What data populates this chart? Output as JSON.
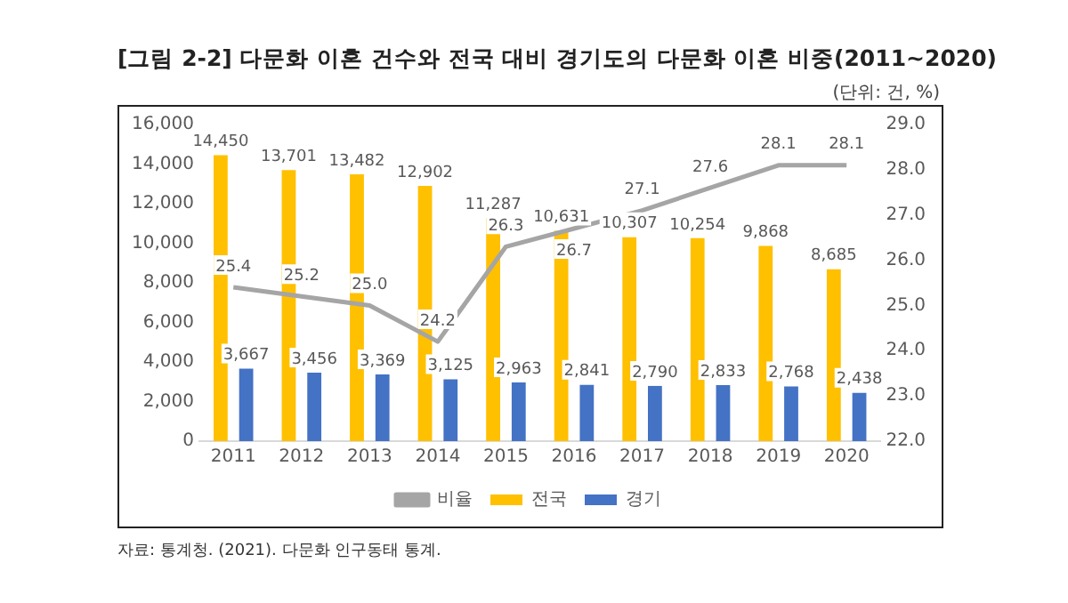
{
  "chart_data": {
    "type": "bar",
    "title": "[그림 2-2] 다문화 이혼 건수와 전국 대비 경기도의 다문화 이혼 비중(2011~2020)",
    "subtitle": "(단위: 건, %)",
    "annotations": [
      "자료: 통계청. (2021). 다문화 인구동태 통계."
    ],
    "categories": [
      "2011",
      "2012",
      "2013",
      "2014",
      "2015",
      "2016",
      "2017",
      "2018",
      "2019",
      "2020"
    ],
    "series": [
      {
        "name": "전국",
        "color": "#ffc000",
        "values": [
          14450,
          13701,
          13482,
          12902,
          11287,
          10631,
          10307,
          10254,
          9868,
          8685
        ],
        "value_labels": [
          "14,450",
          "13,701",
          "13,482",
          "12,902",
          "11,287",
          "10,631",
          "10,307",
          "10,254",
          "9,868",
          "8,685"
        ]
      },
      {
        "name": "경기",
        "color": "#4472c4",
        "values": [
          3667,
          3456,
          3369,
          3125,
          2963,
          2841,
          2790,
          2833,
          2768,
          2438
        ],
        "value_labels": [
          "3,667",
          "3,456",
          "3,369",
          "3,125",
          "2,963",
          "2,841",
          "2,790",
          "2,833",
          "2,768",
          "2,438"
        ]
      },
      {
        "name": "비율",
        "type": "line",
        "axis": "y2",
        "color": "#a5a5a5",
        "values": [
          25.4,
          25.2,
          25.0,
          24.2,
          26.3,
          26.7,
          27.1,
          27.6,
          28.1,
          28.1
        ],
        "value_labels": [
          "25.4",
          "25.2",
          "25.0",
          "24.2",
          "26.3",
          "26.7",
          "27.1",
          "27.6",
          "28.1",
          "28.1"
        ]
      }
    ],
    "ylim": [
      0,
      16000
    ],
    "yticks": [
      0,
      {
        "value": 2000,
        "label": "2,000"
      },
      {
        "value": 4000,
        "label": "4,000"
      },
      {
        "value": 6000,
        "label": "6,000"
      },
      {
        "value": 8000,
        "label": "8,000"
      },
      {
        "value": 10000,
        "label": "10,000"
      },
      {
        "value": 12000,
        "label": "12,000"
      },
      {
        "value": 14000,
        "label": "14,000"
      },
      {
        "value": 16000,
        "label": "16,000"
      }
    ],
    "y2lim": [
      22,
      29
    ],
    "y2ticks": [
      {
        "value": 22,
        "label": "22.0"
      },
      {
        "value": 23,
        "label": "23.0"
      },
      {
        "value": 24,
        "label": "24.0"
      },
      {
        "value": 25,
        "label": "25.0"
      },
      {
        "value": 26,
        "label": "26.0"
      },
      {
        "value": 27,
        "label": "27.0"
      },
      {
        "value": 28,
        "label": "28.0"
      },
      {
        "value": 29,
        "label": "29.0"
      }
    ],
    "grid": false,
    "legend": "bottom",
    "marker": "none"
  }
}
